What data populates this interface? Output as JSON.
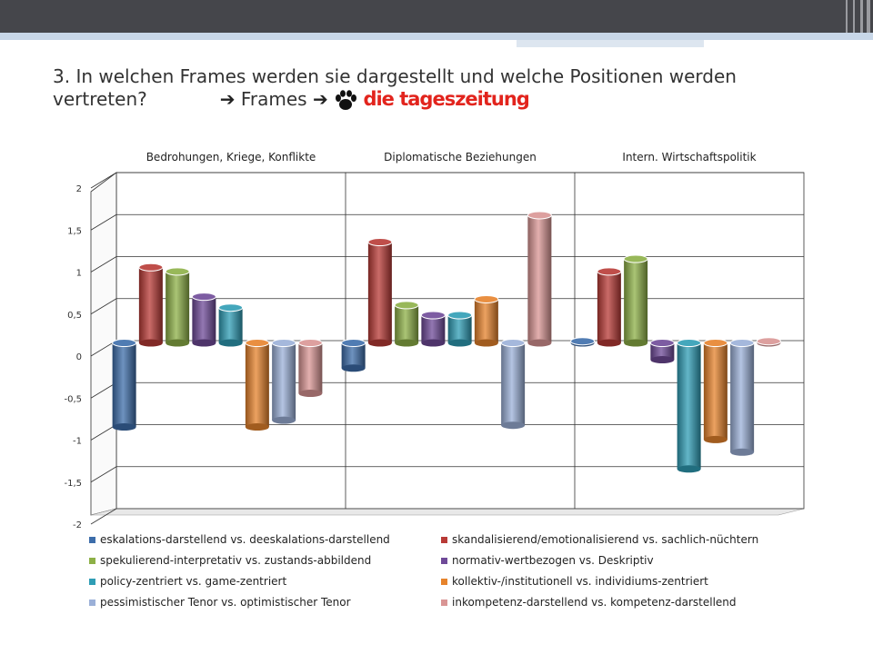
{
  "slide": {
    "title_line1": "3. In welchen Frames werden sie dargestellt und welche Positionen werden",
    "title_line2_prefix": "vertreten?",
    "title_arrow_left": "➔",
    "title_frames": "Frames",
    "title_arrow_right": "➔",
    "logo_text": "die tageszeitung"
  },
  "chart_data": {
    "type": "bar",
    "style": "3d-cylinder",
    "categories": [
      "Bedrohungen, Kriege, Konflikte",
      "Diplomatische Beziehungen",
      "Intern. Wirtschaftspolitik"
    ],
    "ylim": [
      -2,
      2
    ],
    "yticks": [
      -2,
      -1.5,
      -1,
      -0.5,
      0,
      0.5,
      1,
      1.5,
      2
    ],
    "ytick_labels": [
      "-2",
      "-1,5",
      "-1",
      "-0,5",
      "0",
      "0,5",
      "1",
      "1,5",
      "2"
    ],
    "grid": true,
    "legend_position": "bottom",
    "series": [
      {
        "name": "eskalations-darstellend vs. deeskalations-darstellend",
        "color": "#3d6daa",
        "values": [
          -1.0,
          -0.3,
          0.02
        ]
      },
      {
        "name": "skandalisierend/emotionalisierend vs. sachlich-nüchtern",
        "color": "#b83a36",
        "values": [
          0.9,
          1.2,
          0.85
        ]
      },
      {
        "name": "spekulierend-interpretativ vs. zustands-abbildend",
        "color": "#8db047",
        "values": [
          0.85,
          0.45,
          1.0
        ]
      },
      {
        "name": "normativ-wertbezogen vs. Deskriptiv",
        "color": "#6f4a98",
        "values": [
          0.55,
          0.33,
          -0.2
        ]
      },
      {
        "name": "policy-zentriert vs. game-zentriert",
        "color": "#2f9db5",
        "values": [
          0.42,
          0.33,
          -1.5
        ]
      },
      {
        "name": "kollektiv-/institutionell vs. individiums-zentriert",
        "color": "#e6832c",
        "values": [
          -1.0,
          0.52,
          -1.15
        ]
      },
      {
        "name": "pessimistischer Tenor  vs. optimistischer Tenor",
        "color": "#9bb0d8",
        "values": [
          -0.92,
          -0.98,
          -1.3
        ]
      },
      {
        "name": "inkompetenz-darstellend vs. kompetenz-darstellend",
        "color": "#d99594",
        "values": [
          -0.6,
          1.52,
          0.02
        ]
      }
    ]
  }
}
